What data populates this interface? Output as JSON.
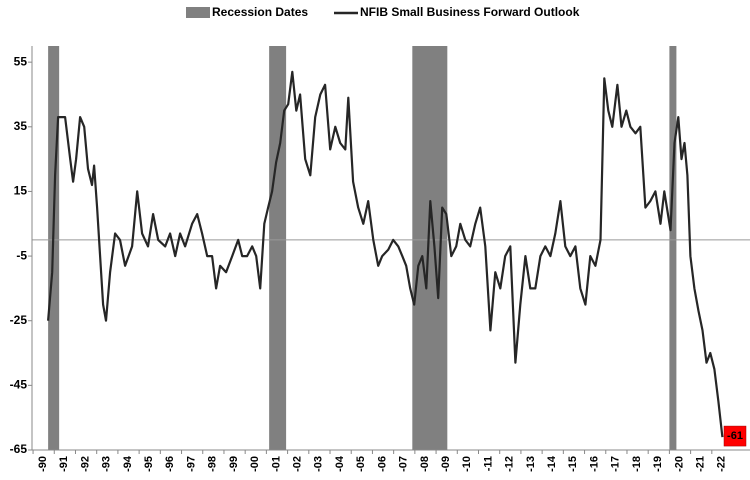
{
  "chart_data": {
    "type": "line",
    "xlim": [
      1989.95,
      2023.8
    ],
    "ylim": [
      -65,
      60
    ],
    "yticks": [
      -65,
      -45,
      -25,
      -5,
      15,
      35,
      55
    ],
    "xticks": [
      {
        "value": 1990,
        "label": "-90"
      },
      {
        "value": 1991,
        "label": "-91"
      },
      {
        "value": 1992,
        "label": "-92"
      },
      {
        "value": 1993,
        "label": "-93"
      },
      {
        "value": 1994,
        "label": "-94"
      },
      {
        "value": 1995,
        "label": "-95"
      },
      {
        "value": 1996,
        "label": "-96"
      },
      {
        "value": 1997,
        "label": "-97"
      },
      {
        "value": 1998,
        "label": "-98"
      },
      {
        "value": 1999,
        "label": "-99"
      },
      {
        "value": 2000,
        "label": "-00"
      },
      {
        "value": 2001,
        "label": "-01"
      },
      {
        "value": 2002,
        "label": "-02"
      },
      {
        "value": 2003,
        "label": "-03"
      },
      {
        "value": 2004,
        "label": "-04"
      },
      {
        "value": 2005,
        "label": "-05"
      },
      {
        "value": 2006,
        "label": "-06"
      },
      {
        "value": 2007,
        "label": "-07"
      },
      {
        "value": 2008,
        "label": "-08"
      },
      {
        "value": 2009,
        "label": "-09"
      },
      {
        "value": 2010,
        "label": "-10"
      },
      {
        "value": 2011,
        "label": "-11"
      },
      {
        "value": 2012,
        "label": "-12"
      },
      {
        "value": 2013,
        "label": "-13"
      },
      {
        "value": 2014,
        "label": "-14"
      },
      {
        "value": 2015,
        "label": "-15"
      },
      {
        "value": 2016,
        "label": "-16"
      },
      {
        "value": 2017,
        "label": "-17"
      },
      {
        "value": 2018,
        "label": "-18"
      },
      {
        "value": 2019,
        "label": "-19"
      },
      {
        "value": 2020,
        "label": "-20"
      },
      {
        "value": 2021,
        "label": "-21"
      },
      {
        "value": 2022,
        "label": "-22"
      }
    ],
    "zero_line": true,
    "series": [
      {
        "name": "Recession Dates",
        "color": "#808080",
        "spans": [
          [
            1990.71,
            1991.23
          ],
          [
            2001.13,
            2001.93
          ],
          [
            2007.88,
            2009.53
          ],
          [
            2020.0,
            2020.33
          ]
        ]
      },
      {
        "name": "NFIB Small Business Forward Outlook",
        "color": "#262626",
        "x": [
          1990.71,
          1990.9,
          1991.04,
          1991.18,
          1991.37,
          1991.51,
          1991.75,
          1991.89,
          1992.03,
          1992.22,
          1992.41,
          1992.59,
          1992.78,
          1992.88,
          1993.02,
          1993.16,
          1993.3,
          1993.44,
          1993.63,
          1993.87,
          1994.1,
          1994.34,
          1994.67,
          1994.91,
          1995.14,
          1995.42,
          1995.66,
          1995.9,
          1996.23,
          1996.46,
          1996.7,
          1996.93,
          1997.17,
          1997.5,
          1997.74,
          1997.97,
          1998.21,
          1998.44,
          1998.63,
          1998.82,
          1999.1,
          1999.39,
          1999.67,
          1999.86,
          2000.09,
          2000.33,
          2000.52,
          2000.71,
          2000.9,
          2001.08,
          2001.27,
          2001.46,
          2001.65,
          2001.84,
          2002.03,
          2002.22,
          2002.41,
          2002.59,
          2002.83,
          2003.07,
          2003.3,
          2003.54,
          2003.77,
          2004.01,
          2004.25,
          2004.48,
          2004.72,
          2004.86,
          2005.09,
          2005.33,
          2005.57,
          2005.8,
          2006.04,
          2006.27,
          2006.46,
          2006.75,
          2006.98,
          2007.22,
          2007.41,
          2007.59,
          2007.78,
          2007.97,
          2008.16,
          2008.35,
          2008.54,
          2008.73,
          2008.92,
          2009.1,
          2009.29,
          2009.48,
          2009.72,
          2009.95,
          2010.14,
          2010.38,
          2010.61,
          2010.85,
          2011.08,
          2011.32,
          2011.56,
          2011.79,
          2012.03,
          2012.26,
          2012.5,
          2012.74,
          2012.97,
          2013.21,
          2013.44,
          2013.68,
          2013.92,
          2014.15,
          2014.39,
          2014.62,
          2014.86,
          2015.09,
          2015.33,
          2015.57,
          2015.8,
          2016.04,
          2016.27,
          2016.51,
          2016.75,
          2016.93,
          2017.12,
          2017.31,
          2017.55,
          2017.74,
          2017.97,
          2018.16,
          2018.4,
          2018.63,
          2018.87,
          2019.1,
          2019.34,
          2019.58,
          2019.76,
          2020.05,
          2020.24,
          2020.42,
          2020.57,
          2020.71,
          2020.85,
          2020.99,
          2021.18,
          2021.37,
          2021.56,
          2021.75,
          2021.93,
          2022.12,
          2022.31,
          2022.5
        ],
        "values": [
          -25,
          -10,
          20,
          38,
          38,
          38,
          25,
          18,
          25,
          38,
          35,
          22,
          17,
          23,
          10,
          -5,
          -20,
          -25,
          -10,
          2,
          0,
          -8,
          -2,
          15,
          2,
          -2,
          8,
          0,
          -2,
          2,
          -5,
          2,
          -2,
          5,
          8,
          2,
          -5,
          -5,
          -15,
          -8,
          -10,
          -5,
          0,
          -5,
          -5,
          -2,
          -5,
          -15,
          5,
          10,
          15,
          24,
          30,
          40,
          42,
          52,
          40,
          45,
          25,
          20,
          38,
          45,
          48,
          28,
          35,
          30,
          28,
          44,
          18,
          10,
          5,
          12,
          0,
          -8,
          -5,
          -3,
          0,
          -2,
          -5,
          -8,
          -15,
          -20,
          -8,
          -5,
          -15,
          12,
          -2,
          -18,
          10,
          8,
          -5,
          -2,
          5,
          0,
          -2,
          5,
          10,
          -2,
          -28,
          -10,
          -15,
          -5,
          -2,
          -38,
          -20,
          -5,
          -15,
          -15,
          -5,
          -2,
          -5,
          2,
          12,
          -2,
          -5,
          -2,
          -15,
          -20,
          -5,
          -8,
          0,
          50,
          40,
          35,
          48,
          35,
          40,
          35,
          33,
          35,
          10,
          12,
          15,
          5,
          15,
          3,
          30,
          38,
          25,
          30,
          20,
          -5,
          -15,
          -22,
          -28,
          -38,
          -35,
          -40,
          -50,
          -61
        ]
      }
    ]
  }
}
